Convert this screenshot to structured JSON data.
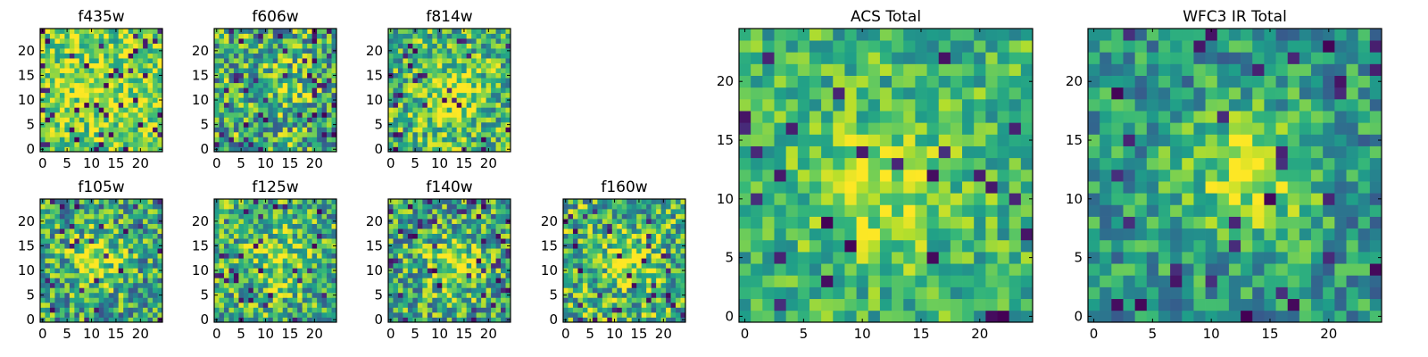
{
  "figure": {
    "colormap": "viridis",
    "panel_titles": [
      "f435w",
      "f606w",
      "f814w",
      "f105w",
      "f125w",
      "f140w",
      "f160w",
      "ACS Total",
      "WFC3 IR Total"
    ]
  },
  "chart_data": [
    {
      "type": "heatmap",
      "title": "f435w",
      "grid": [
        25,
        25
      ],
      "xlim": [
        0,
        25
      ],
      "ylim": [
        0,
        25
      ],
      "xticks": [
        0,
        5,
        10,
        15,
        20
      ],
      "yticks": [
        0,
        5,
        10,
        15,
        20
      ],
      "values_note": "pixel noise image, mostly yellow-green; dark pixels near bottom"
    },
    {
      "type": "heatmap",
      "title": "f606w",
      "grid": [
        25,
        25
      ],
      "xlim": [
        0,
        25
      ],
      "ylim": [
        0,
        25
      ],
      "xticks": [
        0,
        5,
        10,
        15,
        20
      ],
      "yticks": [
        0,
        5,
        10,
        15,
        20
      ]
    },
    {
      "type": "heatmap",
      "title": "f814w",
      "grid": [
        25,
        25
      ],
      "xlim": [
        0,
        25
      ],
      "ylim": [
        0,
        25
      ],
      "xticks": [
        0,
        5,
        10,
        15,
        20
      ],
      "yticks": [
        0,
        5,
        10,
        15,
        20
      ]
    },
    {
      "type": "heatmap",
      "title": "f105w",
      "grid": [
        25,
        25
      ],
      "xlim": [
        0,
        25
      ],
      "ylim": [
        0,
        25
      ],
      "xticks": [
        0,
        5,
        10,
        15,
        20
      ],
      "yticks": [
        0,
        5,
        10,
        15,
        20
      ]
    },
    {
      "type": "heatmap",
      "title": "f125w",
      "grid": [
        25,
        25
      ],
      "xlim": [
        0,
        25
      ],
      "ylim": [
        0,
        25
      ],
      "xticks": [
        0,
        5,
        10,
        15,
        20
      ],
      "yticks": [
        0,
        5,
        10,
        15,
        20
      ]
    },
    {
      "type": "heatmap",
      "title": "f140w",
      "grid": [
        25,
        25
      ],
      "xlim": [
        0,
        25
      ],
      "ylim": [
        0,
        25
      ],
      "xticks": [
        0,
        5,
        10,
        15,
        20
      ],
      "yticks": [
        0,
        5,
        10,
        15,
        20
      ]
    },
    {
      "type": "heatmap",
      "title": "f160w",
      "grid": [
        25,
        25
      ],
      "xlim": [
        0,
        25
      ],
      "ylim": [
        0,
        25
      ],
      "xticks": [
        0,
        5,
        10,
        15,
        20
      ],
      "yticks": [
        0,
        5,
        10,
        15,
        20
      ]
    },
    {
      "type": "heatmap",
      "title": "ACS Total",
      "grid": [
        25,
        25
      ],
      "xlim": [
        0,
        25
      ],
      "ylim": [
        0,
        25
      ],
      "xticks": [
        0,
        5,
        10,
        15,
        20
      ],
      "yticks": [
        0,
        5,
        10,
        15,
        20
      ]
    },
    {
      "type": "heatmap",
      "title": "WFC3 IR Total",
      "grid": [
        25,
        25
      ],
      "xlim": [
        0,
        25
      ],
      "ylim": [
        0,
        25
      ],
      "xticks": [
        0,
        5,
        10,
        15,
        20
      ],
      "yticks": [
        0,
        5,
        10,
        15,
        20
      ]
    }
  ]
}
